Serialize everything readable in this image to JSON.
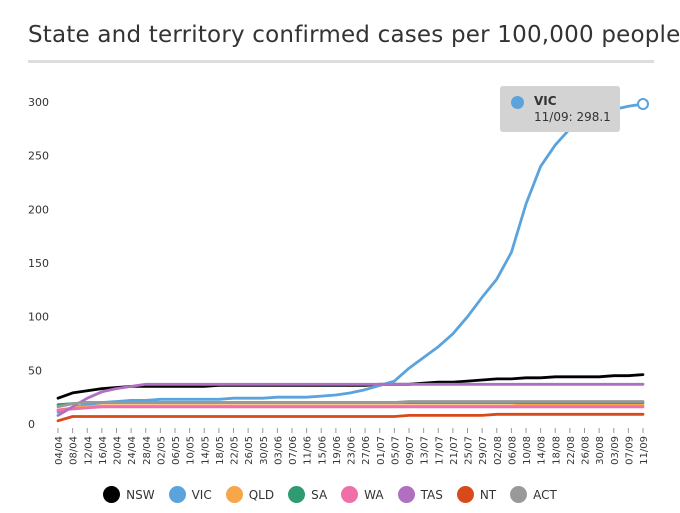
{
  "chart_data": {
    "type": "line",
    "title": "State and territory confirmed cases per 100,000 people",
    "xlabel": "",
    "ylabel": "",
    "ylim": [
      0,
      300
    ],
    "y_ticks": [
      "0",
      "50",
      "100",
      "150",
      "200",
      "250",
      "300"
    ],
    "categories": [
      "04/04",
      "08/04",
      "12/04",
      "16/04",
      "20/04",
      "24/04",
      "28/04",
      "02/05",
      "06/05",
      "10/05",
      "14/05",
      "18/05",
      "22/05",
      "26/05",
      "30/05",
      "03/06",
      "07/06",
      "11/06",
      "15/06",
      "19/06",
      "23/06",
      "27/06",
      "01/07",
      "05/07",
      "09/07",
      "13/07",
      "17/07",
      "21/07",
      "25/07",
      "29/07",
      "02/08",
      "06/08",
      "10/08",
      "14/08",
      "18/08",
      "22/08",
      "26/08",
      "30/08",
      "03/09",
      "07/09",
      "11/09"
    ],
    "series": [
      {
        "name": "NSW",
        "color": "#000000",
        "values": [
          24,
          29,
          31,
          33,
          34,
          35,
          35,
          35,
          35,
          35,
          35,
          36,
          36,
          36,
          36,
          36,
          36,
          36,
          36,
          36,
          36,
          36,
          37,
          37,
          37,
          38,
          39,
          39,
          40,
          41,
          42,
          42,
          43,
          43,
          44,
          44,
          44,
          44,
          45,
          45,
          46
        ]
      },
      {
        "name": "VIC",
        "color": "#5ba3dc",
        "values": [
          11,
          15,
          18,
          20,
          21,
          22,
          22,
          23,
          23,
          23,
          23,
          23,
          24,
          24,
          24,
          25,
          25,
          25,
          26,
          27,
          29,
          32,
          36,
          40,
          52,
          62,
          72,
          84,
          100,
          118,
          135,
          160,
          205,
          240,
          260,
          275,
          285,
          290,
          293,
          296,
          298.1
        ]
      },
      {
        "name": "QLD",
        "color": "#f7a64a",
        "values": [
          13,
          15,
          16,
          17,
          17,
          17,
          17,
          17,
          17,
          17,
          17,
          17,
          17,
          17,
          17,
          17,
          17,
          17,
          17,
          17,
          17,
          17,
          17,
          17,
          17,
          17,
          17,
          17,
          17,
          17,
          17,
          17,
          18,
          18,
          18,
          18,
          18,
          18,
          18,
          18,
          18
        ]
      },
      {
        "name": "SA",
        "color": "#2e9b72",
        "values": [
          18,
          19,
          20,
          20,
          20,
          20,
          20,
          20,
          20,
          20,
          20,
          20,
          20,
          20,
          20,
          20,
          20,
          20,
          20,
          20,
          20,
          20,
          20,
          20,
          20,
          20,
          20,
          20,
          20,
          20,
          20,
          20,
          20,
          20,
          20,
          20,
          20,
          20,
          20,
          20,
          20
        ]
      },
      {
        "name": "WA",
        "color": "#ef6fa8",
        "values": [
          13,
          14,
          15,
          16,
          16,
          16,
          16,
          16,
          16,
          16,
          16,
          16,
          16,
          16,
          16,
          16,
          16,
          16,
          16,
          16,
          16,
          16,
          16,
          16,
          16,
          16,
          16,
          16,
          16,
          16,
          16,
          16,
          16,
          16,
          16,
          16,
          16,
          16,
          16,
          16,
          16
        ]
      },
      {
        "name": "TAS",
        "color": "#b06fc0",
        "values": [
          8,
          16,
          24,
          30,
          33,
          35,
          37,
          37,
          37,
          37,
          37,
          37,
          37,
          37,
          37,
          37,
          37,
          37,
          37,
          37,
          37,
          37,
          37,
          37,
          37,
          37,
          37,
          37,
          37,
          37,
          37,
          37,
          37,
          37,
          37,
          37,
          37,
          37,
          37,
          37,
          37
        ]
      },
      {
        "name": "NT",
        "color": "#d84a1b",
        "values": [
          3,
          7,
          7,
          7,
          7,
          7,
          7,
          7,
          7,
          7,
          7,
          7,
          7,
          7,
          7,
          7,
          7,
          7,
          7,
          7,
          7,
          7,
          7,
          7,
          8,
          8,
          8,
          8,
          8,
          8,
          9,
          9,
          9,
          9,
          9,
          9,
          9,
          9,
          9,
          9,
          9
        ]
      },
      {
        "name": "ACT",
        "color": "#999999",
        "values": [
          16,
          19,
          20,
          20,
          20,
          20,
          20,
          20,
          20,
          20,
          20,
          20,
          20,
          20,
          20,
          20,
          20,
          20,
          20,
          20,
          20,
          20,
          20,
          20,
          21,
          21,
          21,
          21,
          21,
          21,
          21,
          21,
          21,
          21,
          21,
          21,
          21,
          21,
          21,
          21,
          21
        ]
      }
    ],
    "tooltip": {
      "series": "VIC",
      "label": "11/09: 298.1"
    },
    "legend_position": "bottom"
  }
}
